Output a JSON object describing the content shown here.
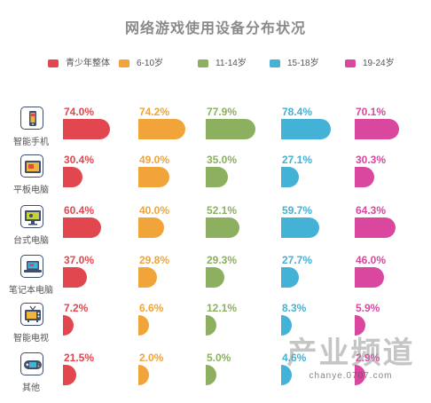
{
  "chart_data": {
    "type": "bar",
    "title": "网络游戏使用设备分布状况",
    "categories": [
      "智能手机",
      "平板电脑",
      "台式电脑",
      "笔记本电脑",
      "智能电视",
      "其他"
    ],
    "series": [
      {
        "name": "青少年整体",
        "color": "#e2474f",
        "values": [
          74.0,
          30.4,
          60.4,
          37.0,
          7.2,
          21.5
        ],
        "labels": [
          "74.0%",
          "30.4%",
          "60.4%",
          "37.0%",
          "7.2%",
          "21.5%"
        ]
      },
      {
        "name": "6-10岁",
        "color": "#f0a43a",
        "values": [
          74.2,
          49.0,
          40.0,
          29.8,
          6.6,
          2.0
        ],
        "labels": [
          "74.2%",
          "49.0%",
          "40.0%",
          "29.8%",
          "6.6%",
          "2.0%"
        ]
      },
      {
        "name": "11-14岁",
        "color": "#8cb060",
        "values": [
          77.9,
          35.0,
          52.1,
          29.3,
          12.1,
          5.0
        ],
        "labels": [
          "77.9%",
          "35.0%",
          "52.1%",
          "29.3%",
          "12.1%",
          "5.0%"
        ]
      },
      {
        "name": "15-18岁",
        "color": "#44b1d6",
        "values": [
          78.4,
          27.1,
          59.7,
          27.7,
          8.3,
          4.6
        ],
        "labels": [
          "78.4%",
          "27.1%",
          "59.7%",
          "27.7%",
          "8.3%",
          "4.6%"
        ]
      },
      {
        "name": "19-24岁",
        "color": "#d9479f",
        "values": [
          70.1,
          30.3,
          64.3,
          46.0,
          5.9,
          2.9
        ],
        "labels": [
          "70.1%",
          "30.3%",
          "64.3%",
          "46.0%",
          "5.9%",
          "2.9%"
        ]
      }
    ],
    "legend_position": "top",
    "grid": false
  },
  "icons": [
    "smartphone-icon",
    "tablet-icon",
    "desktop-icon",
    "laptop-icon",
    "smart-tv-icon",
    "gamepad-icon"
  ],
  "watermark": {
    "text": "产业频道",
    "url": "chanye.0707.com"
  }
}
